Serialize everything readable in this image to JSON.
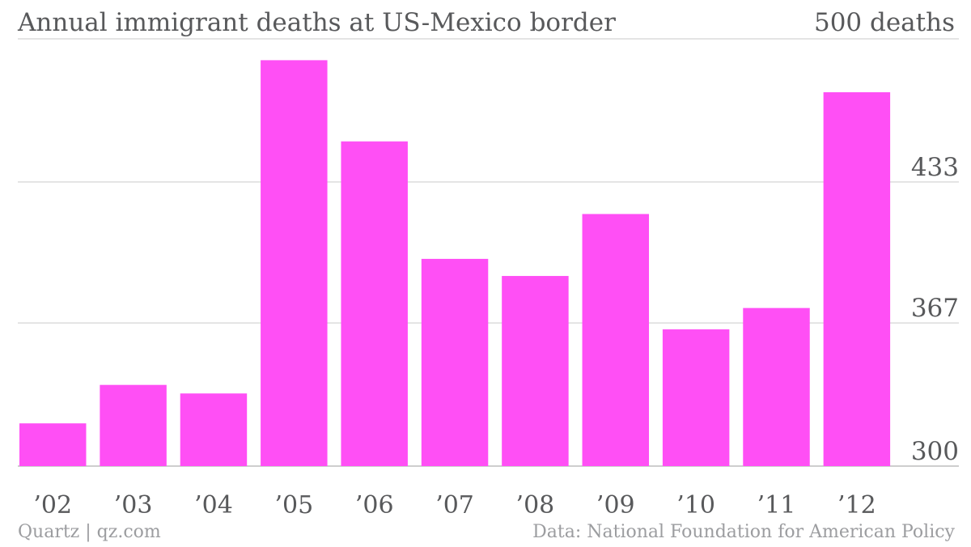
{
  "header": {
    "title": "Annual immigrant deaths at US-Mexico border",
    "unit_label": "500 deaths"
  },
  "footer": {
    "left": "Quartz | qz.com",
    "right": "Data: National Foundation for American Policy"
  },
  "colors": {
    "bar": "#ff4ff5",
    "grid": "#dcdcdc",
    "text": "#58595b",
    "muted": "#9c9da0"
  },
  "chart_data": {
    "type": "bar",
    "title": "Annual immigrant deaths at US-Mexico border",
    "ylabel": "",
    "xlabel": "",
    "categories": [
      "’02",
      "’03",
      "’04",
      "’05",
      "’06",
      "’07",
      "’08",
      "’09",
      "’10",
      "’11",
      "’12"
    ],
    "values": [
      320,
      338,
      334,
      490,
      452,
      397,
      389,
      418,
      364,
      374,
      475
    ],
    "ylim": [
      300,
      500
    ],
    "yticks": [
      300,
      367,
      433
    ],
    "grid": true,
    "legend": "none"
  }
}
